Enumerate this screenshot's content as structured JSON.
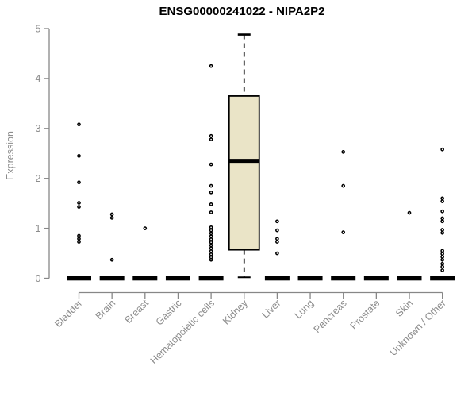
{
  "chart_data": {
    "type": "boxplot",
    "title": "ENSG00000241022 - NIPA2P2",
    "ylabel": "Expression",
    "xlabel": "",
    "ylim": [
      0,
      5
    ],
    "yticks": [
      "0",
      "1",
      "2",
      "3",
      "4",
      "5"
    ],
    "grid": "off",
    "legend": "none",
    "categories": [
      "Bladder",
      "Brain",
      "Breast",
      "Gastric",
      "Hematopoietic cells",
      "Kidney",
      "Liver",
      "Lung",
      "Pancreas",
      "Prostate",
      "Skin",
      "Unknown / Other"
    ],
    "boxes": [
      {
        "category": "Bladder",
        "q1": 0,
        "median": 0,
        "q3": 0,
        "whisker_low": 0,
        "whisker_high": 0,
        "outliers": [
          3.08,
          2.45,
          1.92,
          1.51,
          1.43,
          0.85,
          0.79,
          0.73
        ]
      },
      {
        "category": "Brain",
        "q1": 0,
        "median": 0,
        "q3": 0,
        "whisker_low": 0,
        "whisker_high": 0,
        "outliers": [
          1.28,
          1.21,
          0.37
        ]
      },
      {
        "category": "Breast",
        "q1": 0,
        "median": 0,
        "q3": 0,
        "whisker_low": 0,
        "whisker_high": 0,
        "outliers": [
          1.0
        ]
      },
      {
        "category": "Gastric",
        "q1": 0,
        "median": 0,
        "q3": 0,
        "whisker_low": 0,
        "whisker_high": 0,
        "outliers": []
      },
      {
        "category": "Hematopoietic cells",
        "q1": 0,
        "median": 0,
        "q3": 0,
        "whisker_low": 0,
        "whisker_high": 0,
        "outliers": [
          4.25,
          2.85,
          2.78,
          2.28,
          1.85,
          1.72,
          1.48,
          1.32,
          1.02,
          0.96,
          0.9,
          0.84,
          0.78,
          0.72,
          0.66,
          0.6,
          0.54,
          0.48,
          0.42,
          0.37
        ]
      },
      {
        "category": "Kidney",
        "q1": 0.57,
        "median": 2.35,
        "q3": 3.65,
        "whisker_low": 0.02,
        "whisker_high": 4.88,
        "outliers": []
      },
      {
        "category": "Liver",
        "q1": 0,
        "median": 0,
        "q3": 0,
        "whisker_low": 0,
        "whisker_high": 0,
        "outliers": [
          1.14,
          0.96,
          0.79,
          0.73,
          0.5
        ]
      },
      {
        "category": "Lung",
        "q1": 0,
        "median": 0,
        "q3": 0,
        "whisker_low": 0,
        "whisker_high": 0,
        "outliers": []
      },
      {
        "category": "Pancreas",
        "q1": 0,
        "median": 0,
        "q3": 0,
        "whisker_low": 0,
        "whisker_high": 0,
        "outliers": [
          2.53,
          1.85,
          0.92
        ]
      },
      {
        "category": "Prostate",
        "q1": 0,
        "median": 0,
        "q3": 0,
        "whisker_low": 0,
        "whisker_high": 0,
        "outliers": []
      },
      {
        "category": "Skin",
        "q1": 0,
        "median": 0,
        "q3": 0,
        "whisker_low": 0,
        "whisker_high": 0,
        "outliers": [
          1.31
        ]
      },
      {
        "category": "Unknown / Other",
        "q1": 0,
        "median": 0,
        "q3": 0,
        "whisker_low": 0,
        "whisker_high": 0,
        "outliers": [
          2.58,
          1.6,
          1.54,
          1.34,
          1.2,
          1.14,
          0.97,
          0.91,
          0.55,
          0.49,
          0.43,
          0.37,
          0.29,
          0.23,
          0.16
        ]
      }
    ],
    "colors": {
      "box_fill": "#EAE4C7",
      "box_stroke": "#000000",
      "median": "#000000",
      "zero_bar": "#000000",
      "outlier": "#000000",
      "axis": "#878787",
      "tick_text": "#8C8C8C",
      "title": "#000000",
      "background": "#FFFFFF"
    }
  }
}
